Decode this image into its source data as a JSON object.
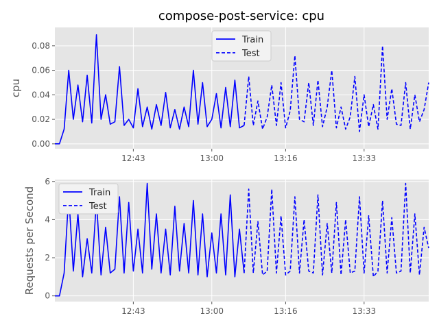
{
  "chart_data": [
    {
      "type": "line",
      "title": "compose-post-service: cpu",
      "ylabel": "cpu",
      "xlabel": "",
      "xlim": [
        "12:26",
        "13:47"
      ],
      "ylim": [
        -0.004,
        0.095
      ],
      "grid": true,
      "legend_position": "top-center",
      "x_ticks": [
        "12:43",
        "13:00",
        "13:16",
        "13:33"
      ],
      "y_ticks": [
        "0.00",
        "0.02",
        "0.04",
        "0.06",
        "0.08"
      ],
      "series": [
        {
          "name": "Train",
          "style": "solid",
          "color": "#0000ff",
          "x": [
            "12:26",
            "12:27",
            "12:28",
            "12:29",
            "12:30",
            "12:31",
            "12:32",
            "12:33",
            "12:34",
            "12:35",
            "12:36",
            "12:37",
            "12:38",
            "12:39",
            "12:40",
            "12:41",
            "12:42",
            "12:43",
            "12:44",
            "12:45",
            "12:46",
            "12:47",
            "12:48",
            "12:49",
            "12:50",
            "12:51",
            "12:52",
            "12:53",
            "12:54",
            "12:55",
            "12:56",
            "12:57",
            "12:58",
            "12:59",
            "13:00",
            "13:01",
            "13:02",
            "13:03",
            "13:04",
            "13:05",
            "13:06",
            "13:07"
          ],
          "values": [
            0.0,
            0.0,
            0.012,
            0.06,
            0.02,
            0.048,
            0.018,
            0.056,
            0.017,
            0.089,
            0.02,
            0.04,
            0.016,
            0.018,
            0.063,
            0.015,
            0.02,
            0.013,
            0.045,
            0.014,
            0.03,
            0.012,
            0.032,
            0.015,
            0.042,
            0.013,
            0.028,
            0.012,
            0.03,
            0.014,
            0.06,
            0.016,
            0.05,
            0.014,
            0.02,
            0.041,
            0.013,
            0.046,
            0.014,
            0.052,
            0.013,
            0.015
          ]
        },
        {
          "name": "Test",
          "style": "dashed",
          "color": "#0000ff",
          "x": [
            "13:07",
            "13:08",
            "13:09",
            "13:10",
            "13:11",
            "13:12",
            "13:13",
            "13:14",
            "13:15",
            "13:16",
            "13:17",
            "13:18",
            "13:19",
            "13:20",
            "13:21",
            "13:22",
            "13:23",
            "13:24",
            "13:25",
            "13:26",
            "13:27",
            "13:28",
            "13:29",
            "13:30",
            "13:31",
            "13:32",
            "13:33",
            "13:34",
            "13:35",
            "13:36",
            "13:37",
            "13:38",
            "13:39",
            "13:40",
            "13:41",
            "13:42",
            "13:43",
            "13:44",
            "13:45",
            "13:46",
            "13:47"
          ],
          "values": [
            0.015,
            0.055,
            0.015,
            0.035,
            0.012,
            0.022,
            0.048,
            0.015,
            0.05,
            0.013,
            0.027,
            0.072,
            0.02,
            0.018,
            0.05,
            0.015,
            0.052,
            0.014,
            0.03,
            0.06,
            0.013,
            0.03,
            0.012,
            0.022,
            0.055,
            0.01,
            0.04,
            0.014,
            0.032,
            0.012,
            0.08,
            0.02,
            0.045,
            0.016,
            0.015,
            0.05,
            0.012,
            0.04,
            0.018,
            0.028,
            0.05
          ]
        }
      ]
    },
    {
      "type": "line",
      "title": "",
      "ylabel": "Requests per Second",
      "xlabel": "",
      "xlim": [
        "12:26",
        "13:47"
      ],
      "ylim": [
        -0.3,
        6.1
      ],
      "grid": true,
      "legend_position": "top-left",
      "x_ticks": [
        "12:43",
        "13:00",
        "13:16",
        "13:33"
      ],
      "y_ticks": [
        "0",
        "2",
        "4",
        "6"
      ],
      "series": [
        {
          "name": "Train",
          "style": "solid",
          "color": "#0000ff",
          "x": [
            "12:26",
            "12:27",
            "12:28",
            "12:29",
            "12:30",
            "12:31",
            "12:32",
            "12:33",
            "12:34",
            "12:35",
            "12:36",
            "12:37",
            "12:38",
            "12:39",
            "12:40",
            "12:41",
            "12:42",
            "12:43",
            "12:44",
            "12:45",
            "12:46",
            "12:47",
            "12:48",
            "12:49",
            "12:50",
            "12:51",
            "12:52",
            "12:53",
            "12:54",
            "12:55",
            "12:56",
            "12:57",
            "12:58",
            "12:59",
            "13:00",
            "13:01",
            "13:02",
            "13:03",
            "13:04",
            "13:05",
            "13:06",
            "13:07"
          ],
          "values": [
            0.0,
            0.0,
            1.2,
            5.3,
            1.3,
            4.3,
            1.0,
            3.0,
            1.2,
            5.0,
            1.1,
            3.6,
            1.2,
            1.4,
            5.2,
            1.2,
            4.9,
            1.3,
            3.5,
            1.2,
            5.9,
            1.4,
            4.3,
            1.2,
            3.5,
            1.1,
            4.7,
            1.3,
            3.8,
            1.2,
            5.0,
            1.1,
            4.3,
            1.0,
            3.3,
            1.2,
            4.3,
            1.1,
            5.3,
            1.0,
            3.5,
            1.2
          ]
        },
        {
          "name": "Test",
          "style": "dashed",
          "color": "#0000ff",
          "x": [
            "13:07",
            "13:08",
            "13:09",
            "13:10",
            "13:11",
            "13:12",
            "13:13",
            "13:14",
            "13:15",
            "13:16",
            "13:17",
            "13:18",
            "13:19",
            "13:20",
            "13:21",
            "13:22",
            "13:23",
            "13:24",
            "13:25",
            "13:26",
            "13:27",
            "13:28",
            "13:29",
            "13:30",
            "13:31",
            "13:32",
            "13:33",
            "13:34",
            "13:35",
            "13:36",
            "13:37",
            "13:38",
            "13:39",
            "13:40",
            "13:41",
            "13:42",
            "13:43",
            "13:44",
            "13:45",
            "13:46",
            "13:47"
          ],
          "values": [
            1.2,
            5.6,
            1.2,
            3.9,
            1.1,
            1.3,
            5.6,
            1.2,
            4.2,
            1.1,
            1.3,
            5.2,
            1.2,
            4.0,
            1.3,
            1.2,
            5.3,
            1.1,
            3.8,
            1.2,
            4.9,
            1.1,
            4.0,
            1.2,
            1.3,
            5.2,
            1.2,
            4.2,
            1.0,
            1.3,
            5.0,
            1.2,
            4.1,
            1.2,
            1.3,
            5.9,
            1.2,
            4.3,
            1.1,
            3.6,
            2.5
          ]
        }
      ]
    }
  ]
}
